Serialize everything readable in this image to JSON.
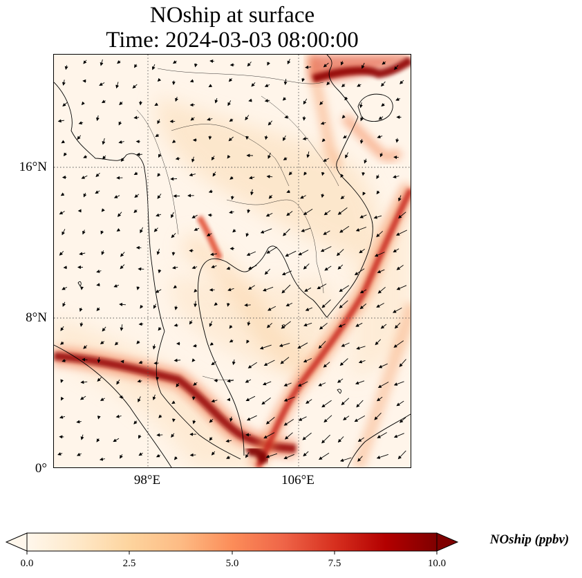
{
  "title": {
    "line1": "NOship at surface",
    "line2": "Time: 2024-03-03 08:00:00"
  },
  "map": {
    "variable": "NOship",
    "units": "ppbv",
    "projection": "PlateCarree",
    "extent_lon": [
      93,
      112
    ],
    "extent_lat": [
      0,
      22
    ],
    "gridlines": "dotted",
    "lat_ticks": [
      {
        "value": 0,
        "label": "0°"
      },
      {
        "value": 8,
        "label": "8°N"
      },
      {
        "value": 16,
        "label": "16°N"
      }
    ],
    "lon_ticks": [
      {
        "value": 98,
        "label": "98°E"
      },
      {
        "value": 106,
        "label": "106°E"
      }
    ],
    "overlays": [
      "coastlines",
      "country-borders",
      "wind-vectors"
    ]
  },
  "colorbar": {
    "cmap": "OrRd",
    "min": 0,
    "max": 10,
    "extend": "both",
    "ticks": [
      {
        "value": 0,
        "label": "0.0"
      },
      {
        "value": 2.5,
        "label": "2.5"
      },
      {
        "value": 5,
        "label": "5.0"
      },
      {
        "value": 7.5,
        "label": "7.5"
      },
      {
        "value": 10,
        "label": "10.0"
      }
    ],
    "label": "NOship (ppbv)",
    "stops": [
      "#fff7ec",
      "#fee8c8",
      "#fdd49e",
      "#fdbb84",
      "#fc8d59",
      "#ef6548",
      "#d7301f",
      "#b30000",
      "#7f0000"
    ]
  }
}
